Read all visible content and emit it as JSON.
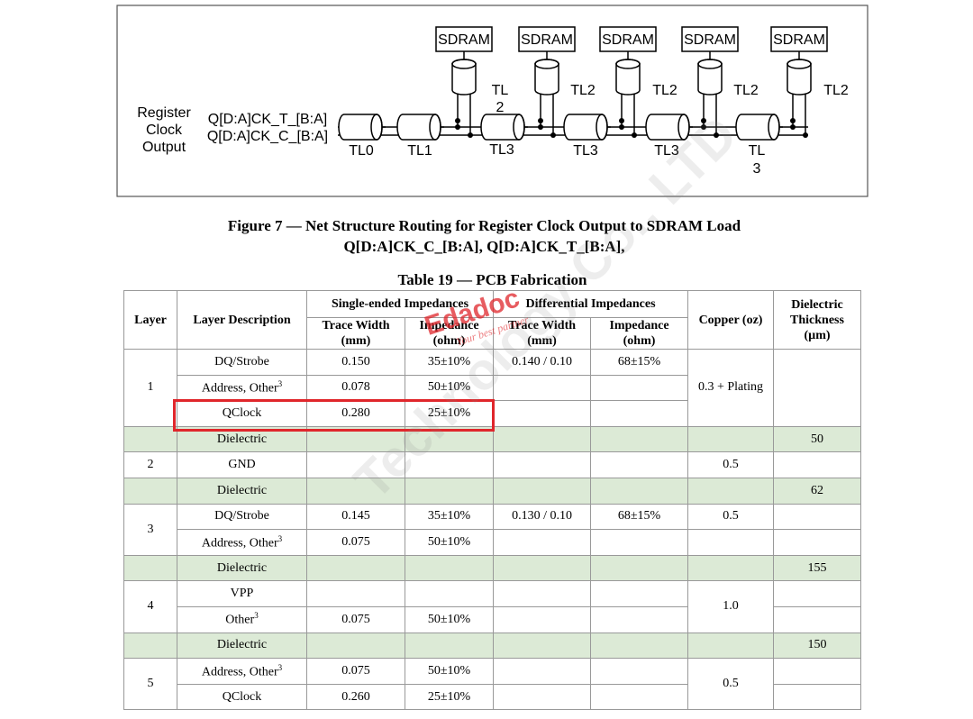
{
  "figure": {
    "labels": {
      "sdram": [
        "SDRAM",
        "SDRAM",
        "SDRAM",
        "SDRAM",
        "SDRAM"
      ],
      "source": [
        "Register",
        "Clock",
        "Output"
      ],
      "signals": [
        "Q[D:A]CK_T_[B:A]",
        "Q[D:A]CK_C_[B:A]"
      ],
      "bus_segments": [
        "TL0",
        "TL1",
        "TL3",
        "TL3",
        "TL3"
      ],
      "last_segment": [
        "TL",
        "3"
      ],
      "stub_first": [
        "TL",
        "2"
      ],
      "stubs": [
        "TL2",
        "TL2",
        "TL2",
        "TL2"
      ]
    },
    "caption": [
      "Figure 7 — Net Structure Routing for Register Clock Output to SDRAM Load",
      "Q[D:A]CK_C_[B:A], Q[D:A]CK_T_[B:A],"
    ]
  },
  "table": {
    "title": "Table 19 — PCB Fabrication",
    "header": {
      "layer": "Layer",
      "description": "Layer Description",
      "single_ended": "Single-ended Impedances",
      "trace_width": "Trace Width (mm)",
      "impedance": "Impedance (ohm)",
      "differential": "Differential Impedances",
      "diff_trace_width": "Trace Width (mm)",
      "diff_impedance": "Impedance (ohm)",
      "copper": "Copper (oz)",
      "thickness": "Dielectric Thickness (µm)"
    },
    "rows": [
      {
        "layer": "1",
        "description": "DQ/Strobe",
        "trace_width": "0.150",
        "impedance": "35±10%",
        "diff_trace_width": "0.140 / 0.10",
        "diff_impedance": "68±15%",
        "copper": "0.3 + Plating"
      },
      {
        "description": "Address, Other",
        "description_sup": "3",
        "trace_width": "0.078",
        "impedance": "50±10%"
      },
      {
        "description": "QClock",
        "trace_width": "0.280",
        "impedance": "25±10%"
      },
      {
        "description": "Dielectric",
        "thickness": "50"
      },
      {
        "layer": "2",
        "description": "GND",
        "copper": "0.5"
      },
      {
        "description": "Dielectric",
        "thickness": "62"
      },
      {
        "layer": "3",
        "description": "DQ/Strobe",
        "trace_width": "0.145",
        "impedance": "35±10%",
        "diff_trace_width": "0.130 / 0.10",
        "diff_impedance": "68±15%",
        "copper": "0.5"
      },
      {
        "description": "Address, Other",
        "description_sup": "3",
        "trace_width": "0.075",
        "impedance": "50±10%"
      },
      {
        "description": "Dielectric",
        "thickness": "155"
      },
      {
        "layer": "4",
        "description": "VPP",
        "copper": "1.0"
      },
      {
        "description": "Other",
        "description_sup": "3",
        "trace_width": "0.075",
        "impedance": "50±10%"
      },
      {
        "description": "Dielectric",
        "thickness": "150"
      },
      {
        "layer": "5",
        "description": "Address, Other",
        "description_sup": "3",
        "trace_width": "0.075",
        "impedance": "50±10%",
        "copper": "0.5"
      },
      {
        "description": "QClock",
        "trace_width": "0.260",
        "impedance": "25±10%"
      }
    ]
  },
  "watermark": {
    "brand": "Edadoc",
    "slogan": "Your best partner",
    "company": "Technology Co., LTD"
  }
}
